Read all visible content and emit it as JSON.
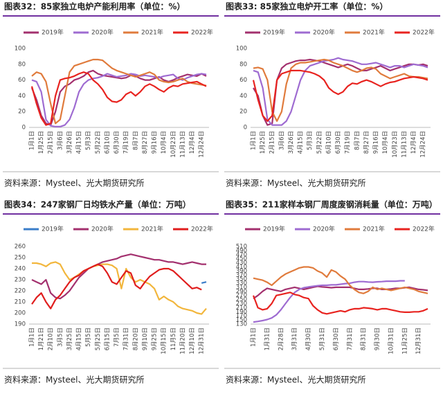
{
  "chart_data": [
    {
      "type": "line",
      "title": "图表32：85家独立电炉产能利用率（单位：%）",
      "source": "资料来源：Mysteel、光大期货研究所",
      "categories": [
        "1月1日",
        null,
        "1月25日",
        null,
        "2月15日",
        null,
        "3月6日",
        null,
        "3月26日",
        null,
        "4月15日",
        null,
        "5月3日",
        null,
        "5月22日",
        null,
        "6月10日",
        null,
        "6月30日",
        null,
        "7月19日",
        null,
        "8月7日",
        null,
        "8月27日",
        null,
        "9月16日",
        null,
        "10月4日",
        null,
        "10月23日",
        null,
        "11月13日",
        null,
        "12月4日",
        null,
        "12月24日",
        null
      ],
      "ylim": [
        0,
        100
      ],
      "yticks": [
        0,
        20,
        40,
        60,
        80,
        100
      ],
      "grid": false,
      "series": [
        {
          "name": "2019年",
          "color": "#a3306e",
          "values": [
            50,
            35,
            15,
            5,
            3,
            20,
            45,
            52,
            55,
            60,
            62,
            65,
            70,
            72,
            68,
            66,
            65,
            64,
            63,
            62,
            63,
            66,
            65,
            62,
            60,
            60,
            62,
            64,
            60,
            58,
            60,
            63,
            65,
            67,
            66,
            65,
            68,
            65
          ]
        },
        {
          "name": "2020年",
          "color": "#9e6bd1",
          "values": [
            60,
            58,
            45,
            10,
            2,
            1,
            1,
            3,
            10,
            25,
            45,
            55,
            60,
            62,
            63,
            65,
            68,
            66,
            64,
            65,
            66,
            68,
            67,
            65,
            66,
            65,
            64,
            63,
            65,
            66,
            67,
            62,
            60,
            63,
            65,
            67,
            68,
            67
          ]
        },
        {
          "name": "2021年",
          "color": "#e07b3c",
          "values": [
            65,
            70,
            68,
            58,
            30,
            5,
            10,
            40,
            70,
            78,
            80,
            82,
            84,
            86,
            86,
            85,
            80,
            75,
            72,
            70,
            68,
            66,
            64,
            66,
            68,
            70,
            67,
            60,
            58,
            57,
            58,
            60,
            62,
            58,
            56,
            55,
            54,
            53
          ]
        },
        {
          "name": "2022年",
          "color": "#e8231f",
          "values": [
            52,
            30,
            12,
            3,
            5,
            40,
            60,
            62,
            63,
            65,
            68,
            70,
            68,
            60,
            55,
            48,
            38,
            33,
            32,
            35,
            42,
            45,
            40,
            45,
            52,
            55,
            52,
            48,
            45,
            50,
            53,
            52,
            55,
            56,
            57,
            58,
            55,
            52
          ]
        }
      ]
    },
    {
      "type": "line",
      "title": "图表33: 85家独立电炉开工率（单位：%）",
      "source": "资料来源：Mysteel、光大期货研究所",
      "categories": [
        "1月1日",
        null,
        "1月25日",
        null,
        "2月15日",
        null,
        "3月6日",
        null,
        "3月26日",
        null,
        "4月15日",
        null,
        "5月3日",
        null,
        "5月22日",
        null,
        "6月10日",
        null,
        "6月30日",
        null,
        "7月19日",
        null,
        "8月7日",
        null,
        "8月27日",
        null,
        "9月16日",
        null,
        "10月4日",
        null,
        "10月23日",
        null,
        "11月13日",
        null,
        "12月4日",
        null,
        "12月24日",
        null
      ],
      "ylim": [
        0,
        100
      ],
      "yticks": [
        0,
        20,
        40,
        60,
        80,
        100
      ],
      "grid": false,
      "series": [
        {
          "name": "2019年",
          "color": "#a3306e",
          "values": [
            50,
            40,
            15,
            3,
            5,
            60,
            75,
            80,
            82,
            84,
            85,
            85,
            86,
            85,
            84,
            82,
            80,
            78,
            76,
            78,
            80,
            78,
            75,
            72,
            72,
            74,
            76,
            78,
            75,
            72,
            74,
            76,
            78,
            80,
            80,
            79,
            80,
            78
          ]
        },
        {
          "name": "2020年",
          "color": "#9e6bd1",
          "values": [
            72,
            70,
            50,
            10,
            3,
            3,
            3,
            8,
            20,
            40,
            60,
            72,
            78,
            80,
            82,
            84,
            85,
            86,
            88,
            86,
            85,
            84,
            82,
            80,
            80,
            81,
            82,
            80,
            78,
            76,
            78,
            78,
            76,
            78,
            80,
            79,
            78,
            76
          ]
        },
        {
          "name": "2021年",
          "color": "#e07b3c",
          "values": [
            75,
            76,
            74,
            60,
            20,
            8,
            20,
            55,
            75,
            80,
            82,
            82,
            83,
            84,
            85,
            86,
            85,
            82,
            80,
            78,
            75,
            72,
            70,
            72,
            75,
            76,
            74,
            68,
            65,
            62,
            64,
            66,
            68,
            65,
            64,
            64,
            63,
            62
          ]
        },
        {
          "name": "2022年",
          "color": "#e8231f",
          "values": [
            60,
            35,
            15,
            8,
            15,
            60,
            68,
            70,
            72,
            72,
            72,
            71,
            70,
            68,
            65,
            60,
            50,
            45,
            42,
            45,
            52,
            56,
            55,
            58,
            60,
            58,
            55,
            52,
            55,
            57,
            58,
            60,
            62,
            63,
            64,
            63,
            62,
            60
          ]
        }
      ]
    },
    {
      "type": "line",
      "title": "图表34：247家钢厂日均铁水产量（单位：万吨）",
      "source": "资料来源：Mysteel、光大期货研究所",
      "categories": [
        "1月1日",
        null,
        "1月21日",
        null,
        "2月10日",
        null,
        "3月5日",
        null,
        "3月25日",
        null,
        "4月15日",
        null,
        "5月5日",
        null,
        "5月25日",
        null,
        "6月15日",
        null,
        "7月5日",
        null,
        "7月31日",
        null,
        "8月20日",
        null,
        "9月10日",
        null,
        "9月25日",
        null,
        "10月15日",
        null,
        "11月5日",
        null,
        "11月20日",
        null,
        "12月10日",
        null,
        "12月31日",
        null
      ],
      "ylim": [
        190,
        260
      ],
      "yticks": [
        190,
        200,
        210,
        220,
        230,
        240,
        250,
        260
      ],
      "grid": false,
      "series": [
        {
          "name": "2019年",
          "color": "#3a7dc9",
          "values": [
            null,
            null,
            null,
            null,
            null,
            null,
            null,
            null,
            null,
            null,
            null,
            null,
            null,
            null,
            null,
            null,
            null,
            null,
            null,
            null,
            null,
            null,
            null,
            null,
            null,
            null,
            null,
            null,
            null,
            null,
            null,
            null,
            null,
            null,
            null,
            null,
            227,
            228
          ]
        },
        {
          "name": "2020年",
          "color": "#a3306e",
          "values": [
            230,
            228,
            226,
            230,
            218,
            214,
            213,
            216,
            220,
            226,
            232,
            236,
            240,
            242,
            244,
            246,
            247,
            248,
            249,
            251,
            252,
            253,
            252,
            251,
            250,
            249,
            248,
            248,
            247,
            246,
            246,
            245,
            244,
            245,
            246,
            245,
            244,
            244
          ]
        },
        {
          "name": "2021年",
          "color": "#f2b63c",
          "values": [
            245,
            245,
            244,
            242,
            245,
            246,
            244,
            236,
            230,
            232,
            235,
            238,
            240,
            242,
            243,
            244,
            244,
            243,
            240,
            222,
            240,
            232,
            228,
            230,
            228,
            226,
            222,
            212,
            215,
            212,
            210,
            206,
            204,
            203,
            202,
            200,
            199,
            204
          ]
        },
        {
          "name": "2022年",
          "color": "#e01d1d",
          "values": [
            208,
            214,
            218,
            210,
            204,
            212,
            216,
            222,
            228,
            232,
            234,
            238,
            240,
            242,
            244,
            242,
            236,
            228,
            226,
            232,
            238,
            236,
            225,
            222,
            228,
            233,
            236,
            239,
            240,
            240,
            238,
            234,
            230,
            226,
            222,
            223,
            221,
            null
          ]
        }
      ]
    },
    {
      "type": "line",
      "title": "图表35：211家样本钢厂周度废钢消耗量（单位：万吨）",
      "source": "资料来源：Mysteel、光大期货研究所",
      "categories": [
        "1月1日",
        null,
        null,
        "1月31日",
        null,
        null,
        "2月28日",
        null,
        null,
        "3月31日",
        null,
        null,
        "4月30日",
        null,
        null,
        "5月31日",
        null,
        null,
        "6月30日",
        null,
        null,
        "7月31日",
        null,
        null,
        "8月31日",
        null,
        null,
        "9月30日",
        null,
        null,
        "10月31日",
        null,
        null,
        "11月25日",
        null,
        null,
        "12月31日",
        null,
        null
      ],
      "ylim": [
        130,
        510
      ],
      "yticks": [
        130,
        150,
        170,
        190,
        210,
        230,
        250,
        270,
        290,
        310,
        330,
        350,
        370,
        390,
        410,
        430,
        450,
        470,
        490,
        510
      ],
      "grid": false,
      "series": [
        {
          "name": "2019年",
          "color": "#a3306e",
          "values": [
            255,
            270,
            290,
            305,
            300,
            295,
            290,
            300,
            305,
            310,
            305,
            300,
            305,
            310,
            315,
            312,
            310,
            308,
            310,
            310,
            310,
            310,
            305,
            300,
            300,
            302,
            305,
            305,
            300,
            300,
            302,
            305,
            305,
            308,
            310,
            305,
            300,
            298,
            295
          ]
        },
        {
          "name": "2020年",
          "color": "#9e6bd1",
          "values": [
            140,
            143,
            147,
            152,
            160,
            175,
            200,
            230,
            260,
            285,
            300,
            308,
            312,
            315,
            318,
            320,
            320,
            322,
            322,
            325,
            328,
            330,
            335,
            338,
            338,
            336,
            335,
            337,
            338,
            340,
            340,
            340,
            342,
            342,
            null,
            null,
            null,
            null,
            null
          ]
        },
        {
          "name": "2021年",
          "color": "#e07b3c",
          "values": [
            355,
            350,
            345,
            335,
            320,
            340,
            360,
            375,
            385,
            395,
            405,
            410,
            410,
            405,
            390,
            380,
            360,
            395,
            385,
            365,
            350,
            320,
            300,
            285,
            280,
            290,
            310,
            300,
            305,
            300,
            295,
            300,
            305,
            310,
            305,
            300,
            290,
            285,
            280
          ]
        },
        {
          "name": "2022年",
          "color": "#e8231f",
          "values": [
            270,
            210,
            200,
            205,
            230,
            270,
            275,
            280,
            285,
            275,
            270,
            260,
            255,
            220,
            200,
            185,
            180,
            185,
            190,
            195,
            190,
            200,
            205,
            205,
            210,
            208,
            205,
            200,
            205,
            205,
            200,
            195,
            190,
            188,
            188,
            190,
            190,
            195,
            205
          ]
        }
      ]
    }
  ]
}
